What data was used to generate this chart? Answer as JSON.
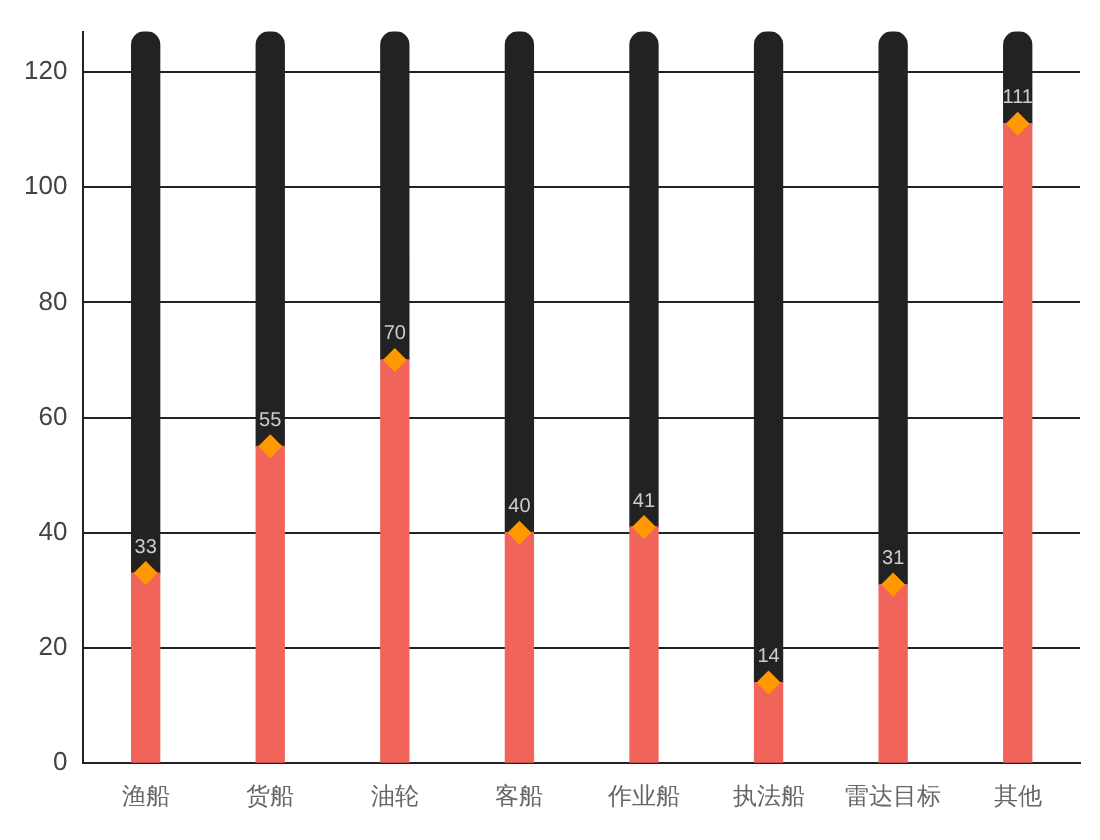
{
  "chart_data": {
    "type": "bar",
    "stacked": true,
    "categories": [
      "渔船",
      "货船",
      "油轮",
      "客船",
      "作业船",
      "执法船",
      "雷达目标",
      "其他"
    ],
    "series": [
      {
        "color": "#f0645a",
        "values": [
          33,
          55,
          70,
          40,
          41,
          14,
          31,
          111
        ]
      },
      {
        "color": "#222222",
        "values": [
          94,
          72,
          57,
          87,
          86,
          113,
          96,
          16
        ]
      },
      {
        "type": "scatter",
        "color": "#ff9900",
        "x": [
          "渔船",
          "货船",
          "油轮",
          "客船",
          "作业船",
          "执法船",
          "雷达目标",
          "其他"
        ],
        "values": [
          33,
          55,
          70,
          40,
          41,
          14,
          31,
          111
        ],
        "marker": "diamond",
        "data_labels": true
      }
    ],
    "ylim": [
      0,
      127
    ],
    "yticks": [
      0,
      20,
      40,
      60,
      80,
      100,
      120
    ],
    "grid": "y",
    "legend": false
  }
}
